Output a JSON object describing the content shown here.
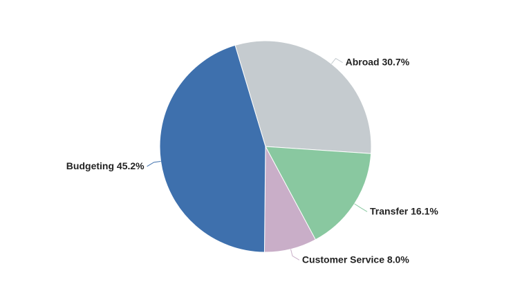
{
  "chart_data": {
    "type": "pie",
    "categories": [
      "Abroad",
      "Transfer",
      "Customer Service",
      "Budgeting"
    ],
    "values": [
      30.7,
      16.1,
      8.0,
      45.2
    ],
    "value_labels": [
      "30.7%",
      "16.1%",
      "8.0%",
      "45.2%"
    ],
    "colors": [
      "#c5cbcf",
      "#89c8a0",
      "#c9aec8",
      "#3e70ad"
    ]
  }
}
